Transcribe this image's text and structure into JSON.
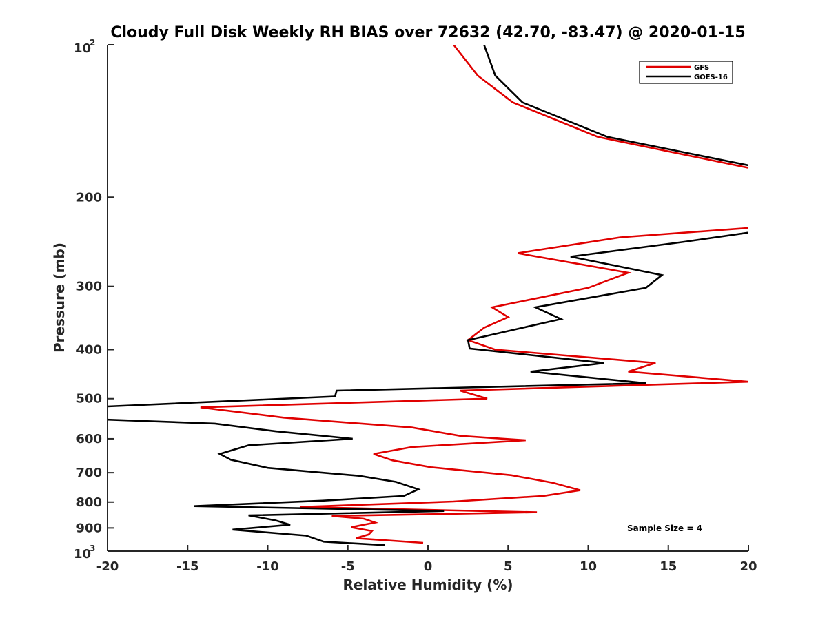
{
  "chart_data": {
    "type": "line",
    "title": "Cloudy Full Disk Weekly RH BIAS over 72632 (42.70, -83.47) @ 2020-01-15",
    "xlabel": "Relative Humidity (%)",
    "ylabel": "Pressure (mb)",
    "xlim": [
      -20,
      20
    ],
    "ylim": [
      100,
      1000
    ],
    "y_scale": "log",
    "y_reversed": true,
    "x_ticks": [
      -20,
      -15,
      -10,
      -5,
      0,
      5,
      10,
      15,
      20
    ],
    "x_tick_labels": [
      "-20",
      "-15",
      "-10",
      "-5",
      "0",
      "5",
      "10",
      "15",
      "20"
    ],
    "y_ticks": [
      200,
      300,
      400,
      500,
      600,
      700,
      800,
      900
    ],
    "y_tick_labels": [
      "200",
      "300",
      "400",
      "500",
      "600",
      "700",
      "800",
      "900"
    ],
    "y_end_labels": {
      "top_base": "10",
      "top_exp": "2",
      "bottom_base": "10",
      "bottom_exp": "3"
    },
    "grid": false,
    "legend_position": "top-right",
    "annotation": "Sample Size = 4",
    "series": [
      {
        "name": "GFS",
        "color": "#e00000",
        "points": [
          [
            1.6,
            100
          ],
          [
            3.1,
            115
          ],
          [
            5.3,
            130
          ],
          [
            10.6,
            152
          ],
          [
            20.0,
            175
          ],
          [
            null,
            null
          ],
          [
            20.0,
            230
          ],
          [
            12.0,
            240
          ],
          [
            5.6,
            258
          ],
          [
            12.5,
            282
          ],
          [
            10.0,
            302
          ],
          [
            4.0,
            330
          ],
          [
            5.0,
            345
          ],
          [
            3.5,
            362
          ],
          [
            2.5,
            383
          ],
          [
            4.2,
            400
          ],
          [
            14.2,
            425
          ],
          [
            12.5,
            442
          ],
          [
            20.0,
            463
          ],
          [
            2.0,
            482
          ],
          [
            3.7,
            500
          ],
          [
            -14.2,
            520
          ],
          [
            -9.0,
            545
          ],
          [
            -1.0,
            570
          ],
          [
            2.0,
            592
          ],
          [
            6.1,
            604
          ],
          [
            -1.0,
            623
          ],
          [
            -3.4,
            643
          ],
          [
            -2.2,
            662
          ],
          [
            0.2,
            683
          ],
          [
            5.2,
            708
          ],
          [
            7.8,
            733
          ],
          [
            9.5,
            758
          ],
          [
            7.2,
            778
          ],
          [
            1.6,
            798
          ],
          [
            -8.0,
            818
          ],
          [
            6.8,
            838
          ],
          [
            -6.0,
            852
          ],
          [
            -4.0,
            863
          ],
          [
            -3.3,
            878
          ],
          [
            -4.8,
            897
          ],
          [
            -3.5,
            913
          ],
          [
            -3.7,
            927
          ],
          [
            -4.5,
            943
          ],
          [
            -0.3,
            963
          ]
        ]
      },
      {
        "name": "GOES-16",
        "color": "#000000",
        "points": [
          [
            3.5,
            100
          ],
          [
            4.2,
            115
          ],
          [
            5.9,
            130
          ],
          [
            11.2,
            152
          ],
          [
            20.0,
            173
          ],
          [
            null,
            null
          ],
          [
            20.0,
            235
          ],
          [
            16.0,
            245
          ],
          [
            8.9,
            262
          ],
          [
            14.6,
            285
          ],
          [
            13.6,
            302
          ],
          [
            6.7,
            330
          ],
          [
            8.3,
            348
          ],
          [
            2.5,
            383
          ],
          [
            2.6,
            398
          ],
          [
            11.0,
            425
          ],
          [
            6.4,
            442
          ],
          [
            13.6,
            466
          ],
          [
            -5.7,
            482
          ],
          [
            -5.8,
            495
          ],
          [
            -20.0,
            518
          ],
          [
            null,
            null
          ],
          [
            -20.0,
            550
          ],
          [
            -13.3,
            560
          ],
          [
            -9.5,
            580
          ],
          [
            -4.7,
            600
          ],
          [
            -11.2,
            618
          ],
          [
            -13.0,
            643
          ],
          [
            -12.3,
            660
          ],
          [
            -10.0,
            685
          ],
          [
            -4.3,
            710
          ],
          [
            -2.0,
            730
          ],
          [
            -0.6,
            755
          ],
          [
            -1.5,
            778
          ],
          [
            -6.6,
            795
          ],
          [
            -14.6,
            815
          ],
          [
            1.0,
            833
          ],
          [
            -11.2,
            850
          ],
          [
            -9.5,
            870
          ],
          [
            -8.6,
            887
          ],
          [
            -12.2,
            907
          ],
          [
            -7.6,
            932
          ],
          [
            -6.5,
            958
          ],
          [
            -2.7,
            973
          ]
        ]
      }
    ]
  }
}
